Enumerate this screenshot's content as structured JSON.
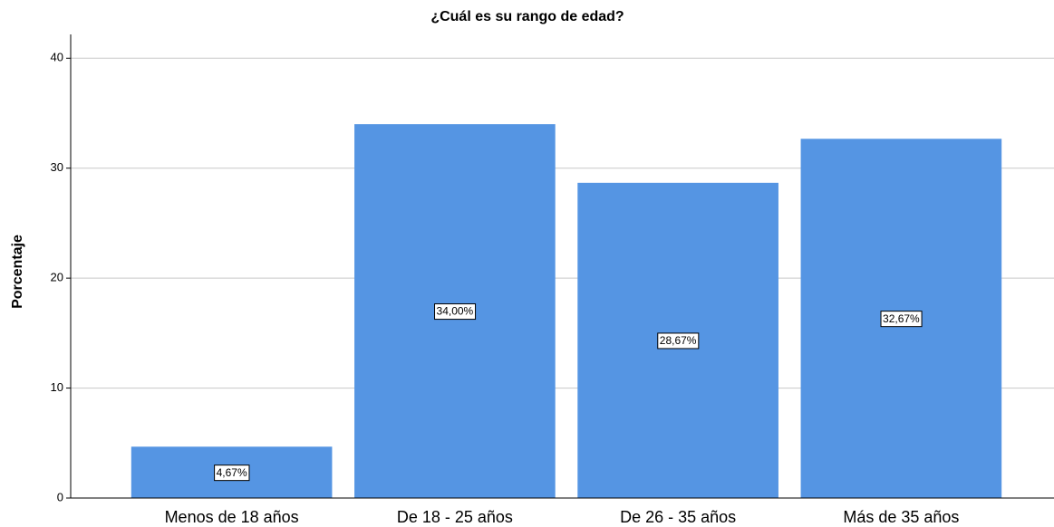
{
  "chart_data": {
    "type": "bar",
    "title": "¿Cuál es su rango de edad?",
    "y_label": "Porcentaje",
    "categories": [
      "Menos de 18 años",
      "De 18 - 25 años",
      "De 26 - 35 años",
      "Más de 35 años"
    ],
    "values": [
      4.67,
      34.0,
      28.67,
      32.67
    ],
    "value_labels": [
      "4,67%",
      "34,00%",
      "28,67%",
      "32,67%"
    ],
    "color": "#5595e3",
    "ylim": [
      0,
      42
    ],
    "yticks": [
      0,
      10,
      20,
      30,
      40
    ],
    "grid": true
  }
}
